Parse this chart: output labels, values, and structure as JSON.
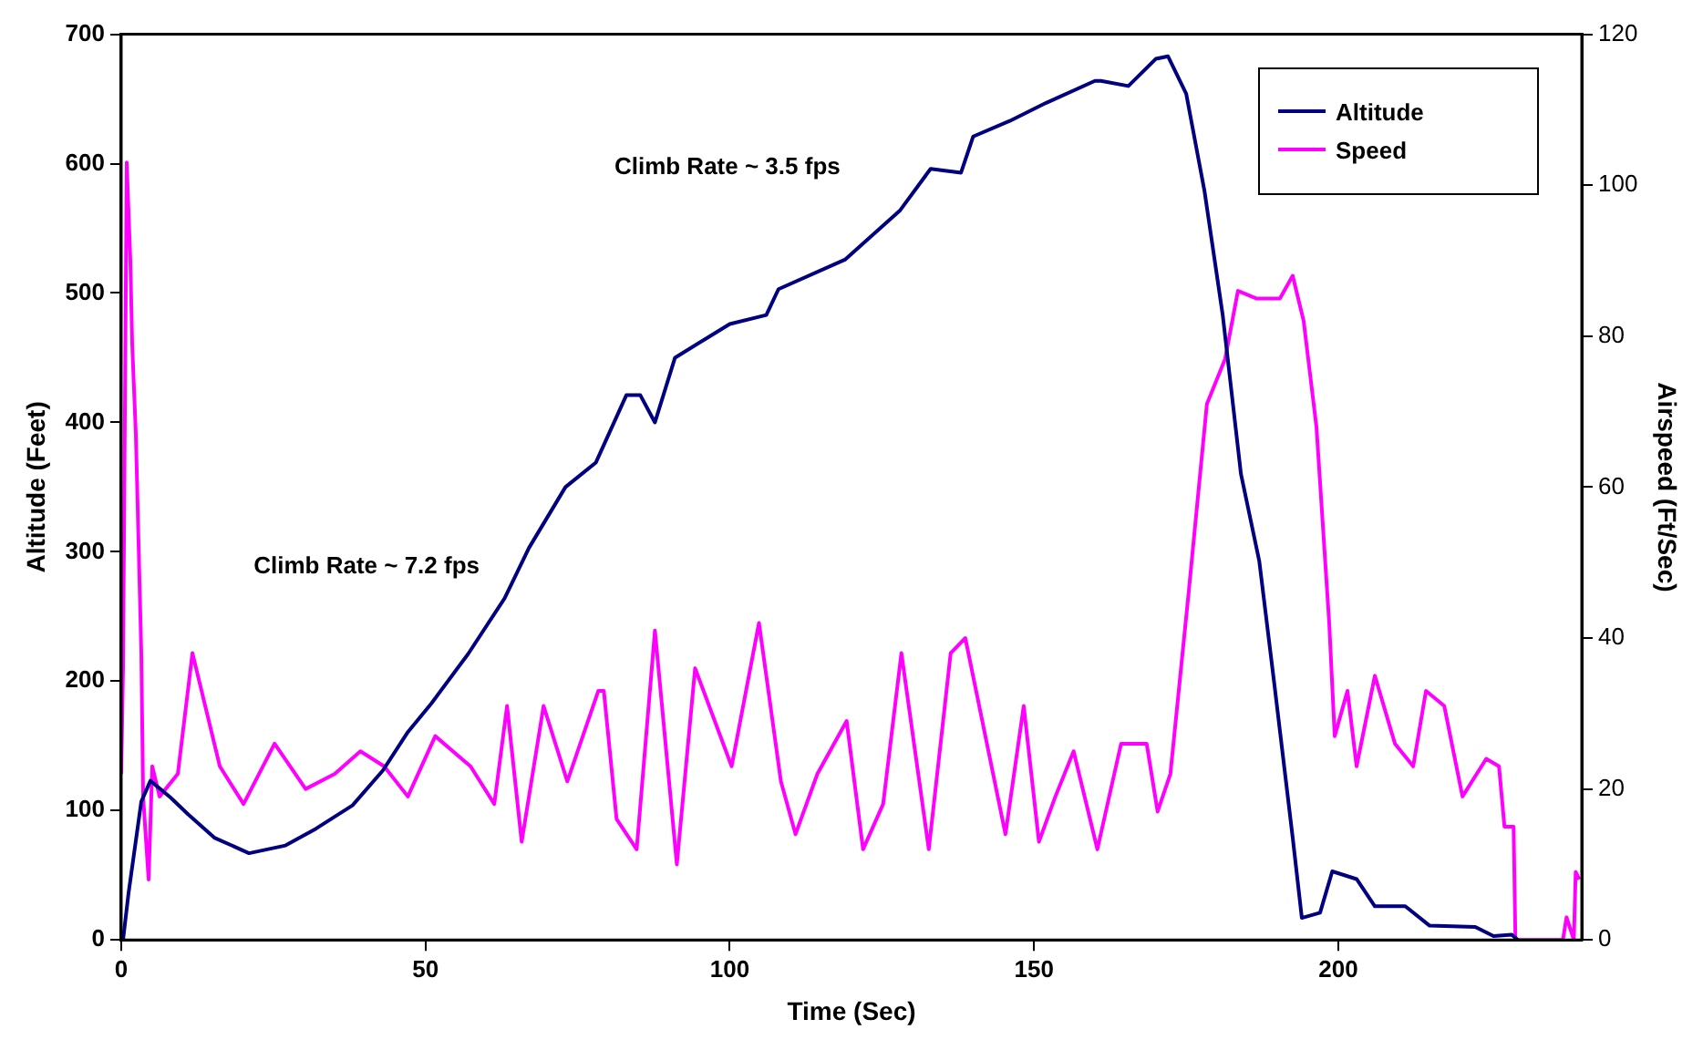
{
  "chart_data": {
    "type": "line",
    "xlabel": "Time (Sec)",
    "ylabel": "Altitude (Feet)",
    "y2label": "Airspeed (Ft/Sec)",
    "xlim": [
      0,
      240
    ],
    "xticks": [
      0,
      50,
      100,
      150,
      200
    ],
    "ylim": [
      0,
      700
    ],
    "yticks": [
      0,
      100,
      200,
      300,
      400,
      500,
      600,
      700
    ],
    "y2lim": [
      0,
      120
    ],
    "y2ticks": [
      0,
      20,
      40,
      60,
      80,
      100,
      120
    ],
    "grid": false,
    "legend": "top right",
    "marker": "none",
    "line_style": "solid",
    "annotations": [
      "Climb Rate ~ 3.5 fps",
      "Climb Rate ~ 7.2 fps"
    ],
    "series": [
      {
        "name": "Altitude",
        "color": "#000080",
        "x": [
          0.3,
          1.2,
          3.3,
          4.8,
          8.1,
          11,
          15.3,
          21,
          27,
          32,
          38,
          43,
          47,
          51,
          57,
          63,
          67,
          73,
          78,
          83,
          85.3,
          87.7,
          91,
          100,
          106,
          108,
          119,
          128,
          133,
          138,
          140,
          146,
          152,
          160,
          161,
          165.5,
          170,
          172,
          175,
          178,
          181,
          184,
          187,
          189.5,
          192.5,
          194,
          197,
          199,
          203,
          206,
          211,
          215,
          222.5,
          225.5,
          228.5,
          229.5
        ],
        "values": [
          0,
          36,
          107,
          123,
          110,
          97,
          79,
          67,
          73,
          86,
          104,
          131,
          160,
          183,
          221,
          264,
          303,
          350,
          369,
          421,
          421,
          400,
          450,
          476,
          483,
          503,
          526,
          564,
          596,
          593,
          621,
          633,
          647,
          664,
          664,
          660,
          681,
          683,
          654,
          579,
          483,
          360,
          293,
          197,
          79,
          17,
          21,
          53,
          47,
          26,
          26,
          11,
          10,
          3,
          4,
          0
        ]
      },
      {
        "name": "Speed",
        "color": "#ff00ff",
        "axis": "y2",
        "x": [
          0,
          0.3,
          0.9,
          1.5,
          1.8,
          2.4,
          3.3,
          3.6,
          4.5,
          5.1,
          6.3,
          9.3,
          11.7,
          14.1,
          16.2,
          20.1,
          25.2,
          30.3,
          35.1,
          39.3,
          43.2,
          47.1,
          51.6,
          57.4,
          61.3,
          63.4,
          65.8,
          69.4,
          73.3,
          78.4,
          79.3,
          81.4,
          84.7,
          87.7,
          91.3,
          94.3,
          100.3,
          104.8,
          108.4,
          110.8,
          114.4,
          119.2,
          121.9,
          125.2,
          128.2,
          132.7,
          136.3,
          138.7,
          145.3,
          148.3,
          150.8,
          153.5,
          156.5,
          160.4,
          164.3,
          168.5,
          170.3,
          172.4,
          175.4,
          178.4,
          181.4,
          183.5,
          186.5,
          190.4,
          192.5,
          194.3,
          196.4,
          198.5,
          199.4,
          201.5,
          203,
          206,
          209.3,
          212.3,
          214.4,
          217.4,
          220.4,
          224.3,
          226.4,
          227.3,
          228.8,
          229.1,
          236.9,
          237.5,
          238.7,
          239,
          239.6
        ],
        "values": [
          22,
          36,
          103,
          90,
          79,
          67,
          38,
          19,
          8,
          23,
          19,
          22,
          38,
          30,
          23,
          18,
          26,
          20,
          22,
          25,
          23,
          19,
          27,
          23,
          18,
          31,
          13,
          31,
          21,
          33,
          33,
          16,
          12,
          41,
          10,
          36,
          23,
          42,
          21,
          14,
          22,
          29,
          12,
          18,
          38,
          12,
          38,
          40,
          14,
          31,
          13,
          19,
          25,
          12,
          26,
          26,
          17,
          22,
          46,
          71,
          77,
          86,
          85,
          85,
          88,
          82,
          68,
          42,
          27,
          33,
          23,
          35,
          26,
          23,
          33,
          31,
          19,
          24,
          23,
          15,
          15,
          0,
          0,
          3,
          0,
          9,
          8
        ]
      }
    ]
  }
}
